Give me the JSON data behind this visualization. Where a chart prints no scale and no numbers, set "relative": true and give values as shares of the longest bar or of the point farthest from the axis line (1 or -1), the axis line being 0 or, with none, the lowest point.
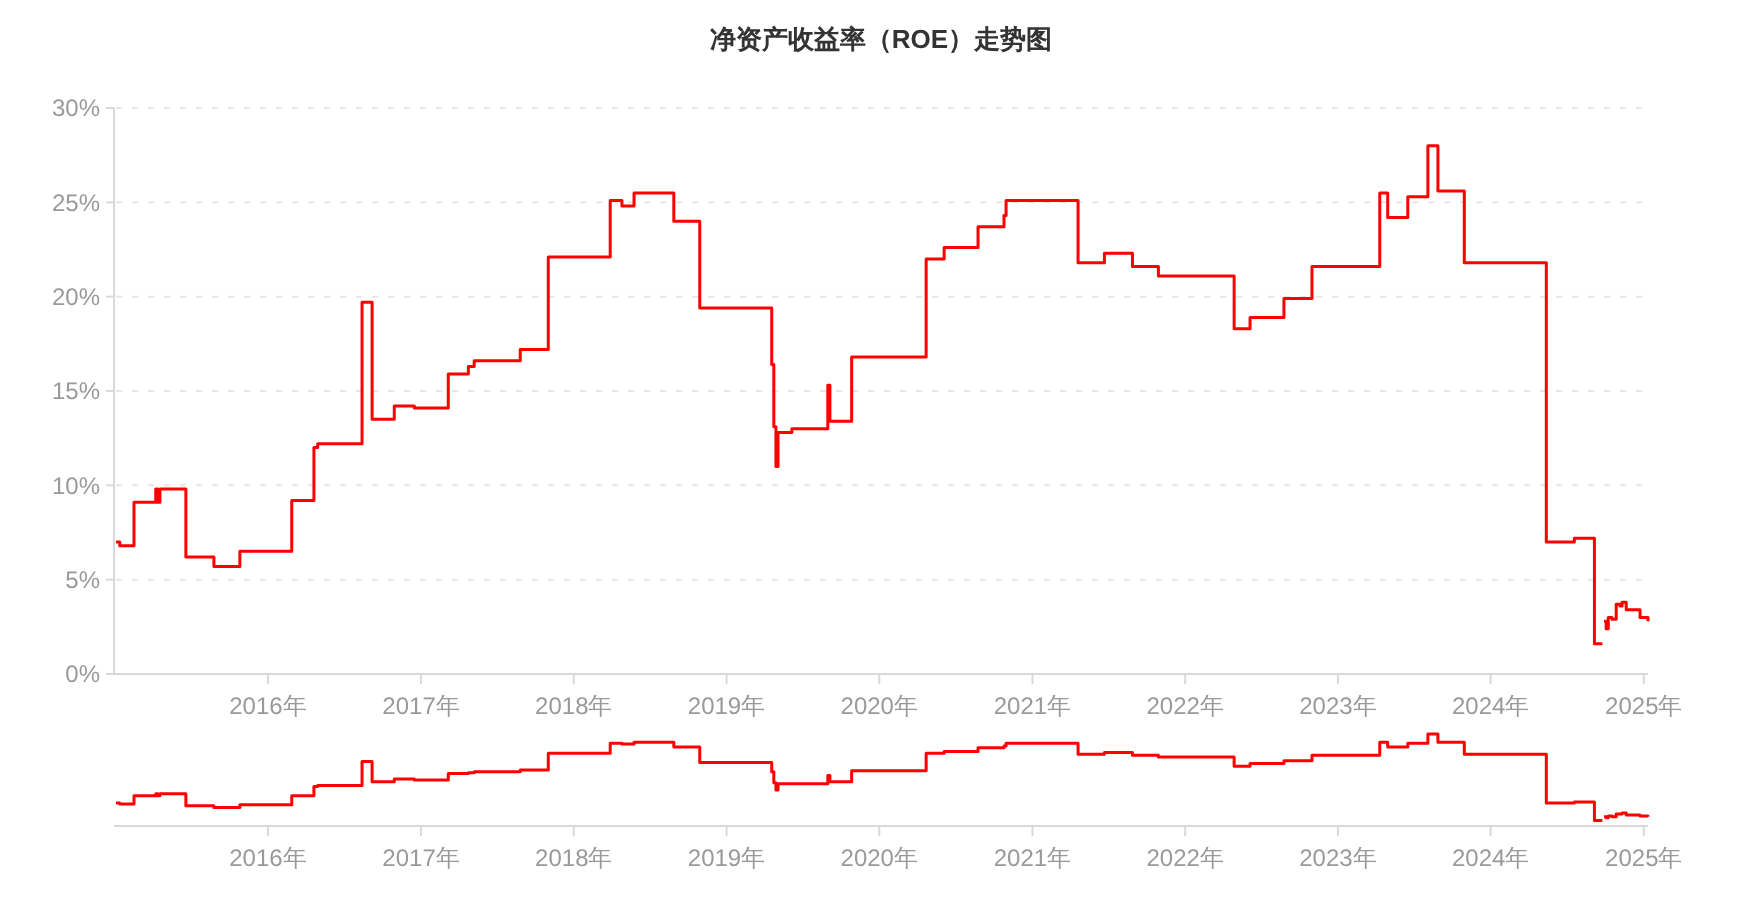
{
  "chart_data": [
    {
      "type": "step",
      "title": "净资产收益率（ROE）走势图",
      "x": [
        "2015-01-03",
        "2015-01-12",
        "2015-02-15",
        "2015-04-08",
        "2015-04-13",
        "2015-04-18",
        "2015-06-19",
        "2015-08-25",
        "2015-10-26",
        "2016-02-27",
        "2016-04-20",
        "2016-04-29",
        "2016-08-13",
        "2016-09-06",
        "2016-10-29",
        "2016-12-16",
        "2017-03-07",
        "2017-04-24",
        "2017-05-08",
        "2017-08-26",
        "2017-11-01",
        "2018-03-29",
        "2018-04-26",
        "2018-05-25",
        "2018-08-28",
        "2018-10-29",
        "2019-04-19",
        "2019-04-24",
        "2019-04-29",
        "2019-05-04",
        "2019-06-06",
        "2019-08-31",
        "2019-09-05",
        "2019-10-27",
        "2020-04-22",
        "2020-06-04",
        "2020-08-24",
        "2020-10-25",
        "2020-10-30",
        "2021-04-20",
        "2021-06-22",
        "2021-08-28",
        "2021-10-29",
        "2022-04-28",
        "2022-06-05",
        "2022-08-25",
        "2022-10-31",
        "2023-04-11",
        "2023-04-30",
        "2023-06-17",
        "2023-08-04",
        "2023-08-28",
        "2023-10-30",
        "2024-04-28",
        "2024-05-13",
        "2024-07-19",
        "2024-09-05",
        "2024-09-24",
        "2024-09-26",
        "2024-09-28",
        "2024-10-03",
        "2024-10-08",
        "2024-10-17",
        "2024-10-27",
        "2024-11-05",
        "2024-11-10",
        "2024-11-20",
        "2024-12-09",
        "2024-12-23",
        "2025-01-11"
      ],
      "series": [
        {
          "color": "#ff0000",
          "values": [
            7.0,
            6.8,
            9.1,
            9.8,
            9.1,
            9.8,
            6.2,
            5.7,
            6.5,
            9.2,
            12.0,
            12.2,
            19.7,
            13.5,
            14.2,
            14.1,
            15.9,
            16.3,
            16.6,
            17.2,
            22.1,
            25.1,
            24.8,
            25.5,
            24.0,
            19.4,
            16.4,
            13.1,
            11.0,
            12.8,
            13.0,
            15.3,
            13.4,
            16.8,
            22.0,
            22.6,
            23.7,
            24.3,
            25.1,
            21.8,
            22.3,
            21.6,
            21.1,
            18.3,
            18.9,
            19.9,
            21.6,
            25.5,
            24.2,
            25.3,
            28.0,
            25.6,
            21.8,
            21.8,
            7.0,
            7.2,
            1.6,
            1.6,
            null,
            2.8,
            2.4,
            3.0,
            2.9,
            3.7,
            3.6,
            3.8,
            3.4,
            3.4,
            3.0,
            2.8
          ]
        }
      ],
      "xlim": [
        "2015-01-03",
        "2025-01-11"
      ],
      "xticks": [
        {
          "value": "2016-01-01",
          "label": "2016年"
        },
        {
          "value": "2017-01-01",
          "label": "2017年"
        },
        {
          "value": "2018-01-01",
          "label": "2018年"
        },
        {
          "value": "2019-01-01",
          "label": "2019年"
        },
        {
          "value": "2020-01-01",
          "label": "2020年"
        },
        {
          "value": "2021-01-01",
          "label": "2021年"
        },
        {
          "value": "2022-01-01",
          "label": "2022年"
        },
        {
          "value": "2023-01-01",
          "label": "2023年"
        },
        {
          "value": "2024-01-01",
          "label": "2024年"
        },
        {
          "value": "2025-01-01",
          "label": "2025年"
        }
      ],
      "ylim": [
        0,
        30
      ],
      "yticks": [
        {
          "value": 0,
          "label": "0%"
        },
        {
          "value": 5,
          "label": "5%"
        },
        {
          "value": 10,
          "label": "10%"
        },
        {
          "value": 15,
          "label": "15%"
        },
        {
          "value": 20,
          "label": "20%"
        },
        {
          "value": 25,
          "label": "25%"
        },
        {
          "value": 30,
          "label": "30%"
        }
      ],
      "grid": "y"
    },
    {
      "type": "step",
      "x": [
        "2015-01-03",
        "2015-01-12",
        "2015-02-15",
        "2015-04-08",
        "2015-04-13",
        "2015-04-18",
        "2015-06-19",
        "2015-08-25",
        "2015-10-26",
        "2016-02-27",
        "2016-04-20",
        "2016-04-29",
        "2016-08-13",
        "2016-09-06",
        "2016-10-29",
        "2016-12-16",
        "2017-03-07",
        "2017-04-24",
        "2017-05-08",
        "2017-08-26",
        "2017-11-01",
        "2018-03-29",
        "2018-04-26",
        "2018-05-25",
        "2018-08-28",
        "2018-10-29",
        "2019-04-19",
        "2019-04-24",
        "2019-04-29",
        "2019-05-04",
        "2019-06-06",
        "2019-08-31",
        "2019-09-05",
        "2019-10-27",
        "2020-04-22",
        "2020-06-04",
        "2020-08-24",
        "2020-10-25",
        "2020-10-30",
        "2021-04-20",
        "2021-06-22",
        "2021-08-28",
        "2021-10-29",
        "2022-04-28",
        "2022-06-05",
        "2022-08-25",
        "2022-10-31",
        "2023-04-11",
        "2023-04-30",
        "2023-06-17",
        "2023-08-04",
        "2023-08-28",
        "2023-10-30",
        "2024-04-28",
        "2024-05-13",
        "2024-07-19",
        "2024-09-05",
        "2024-09-24",
        "2024-09-26",
        "2024-09-28",
        "2024-10-03",
        "2024-10-08",
        "2024-10-17",
        "2024-10-27",
        "2024-11-05",
        "2024-11-10",
        "2024-11-20",
        "2024-12-09",
        "2024-12-23",
        "2025-01-11"
      ],
      "series": [
        {
          "color": "#ff0000",
          "values": [
            0.25,
            0.24,
            0.33,
            0.35,
            0.33,
            0.35,
            0.22,
            0.2,
            0.23,
            0.33,
            0.43,
            0.44,
            0.7,
            0.48,
            0.51,
            0.5,
            0.57,
            0.58,
            0.59,
            0.61,
            0.79,
            0.9,
            0.89,
            0.91,
            0.86,
            0.69,
            0.59,
            0.47,
            0.39,
            0.46,
            0.46,
            0.55,
            0.48,
            0.6,
            0.79,
            0.81,
            0.85,
            0.87,
            0.9,
            0.78,
            0.8,
            0.77,
            0.75,
            0.65,
            0.68,
            0.71,
            0.77,
            0.91,
            0.86,
            0.9,
            1,
            0.91,
            0.78,
            0.78,
            0.25,
            0.26,
            0.06,
            0.06,
            null,
            0.1,
            0.09,
            0.11,
            0.1,
            0.13,
            0.13,
            0.14,
            0.12,
            0.12,
            0.11,
            0.1
          ]
        }
      ],
      "xlim": [
        "2015-01-03",
        "2025-01-11"
      ],
      "xticks": [
        {
          "value": "2016-01-01",
          "label": "2016年"
        },
        {
          "value": "2017-01-01",
          "label": "2017年"
        },
        {
          "value": "2018-01-01",
          "label": "2018年"
        },
        {
          "value": "2019-01-01",
          "label": "2019年"
        },
        {
          "value": "2020-01-01",
          "label": "2020年"
        },
        {
          "value": "2021-01-01",
          "label": "2021年"
        },
        {
          "value": "2022-01-01",
          "label": "2022年"
        },
        {
          "value": "2023-01-01",
          "label": "2023年"
        },
        {
          "value": "2024-01-01",
          "label": "2024年"
        },
        {
          "value": "2025-01-01",
          "label": "2025年"
        }
      ],
      "relative": true,
      "tick_labels": "x"
    }
  ]
}
